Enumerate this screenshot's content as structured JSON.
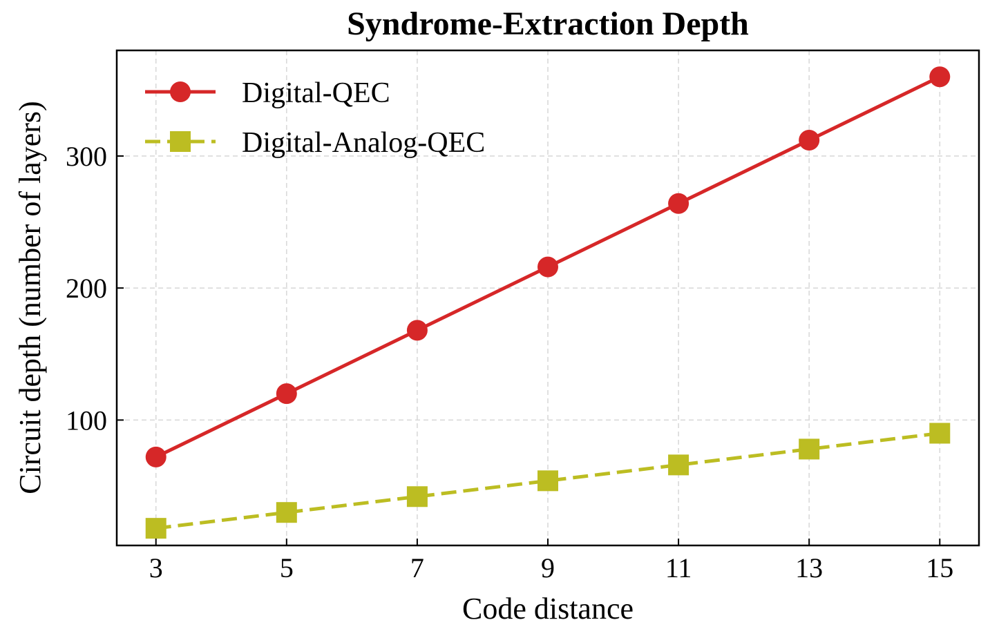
{
  "chart_data": {
    "type": "line",
    "title": "Syndrome-Extraction Depth",
    "xlabel": "Code distance",
    "ylabel": "Circuit depth (number of layers)",
    "x": [
      3,
      5,
      7,
      9,
      11,
      13,
      15
    ],
    "xticks": [
      "3",
      "5",
      "7",
      "9",
      "11",
      "13",
      "15"
    ],
    "yticks": [
      100,
      200,
      300
    ],
    "ytick_labels": [
      "100",
      "200",
      "300"
    ],
    "xlim": [
      2.4,
      15.6
    ],
    "ylim": [
      5,
      380
    ],
    "grid": true,
    "legend_position": "upper-left",
    "series": [
      {
        "name": "Digital-QEC",
        "values": [
          72,
          120,
          168,
          216,
          264,
          312,
          360
        ],
        "color": "#d62728",
        "marker": "circle",
        "linestyle": "solid"
      },
      {
        "name": "Digital-Analog-QEC",
        "values": [
          18,
          30,
          42,
          54,
          66,
          78,
          90
        ],
        "color": "#bcbd22",
        "marker": "square",
        "linestyle": "dashed"
      }
    ]
  }
}
